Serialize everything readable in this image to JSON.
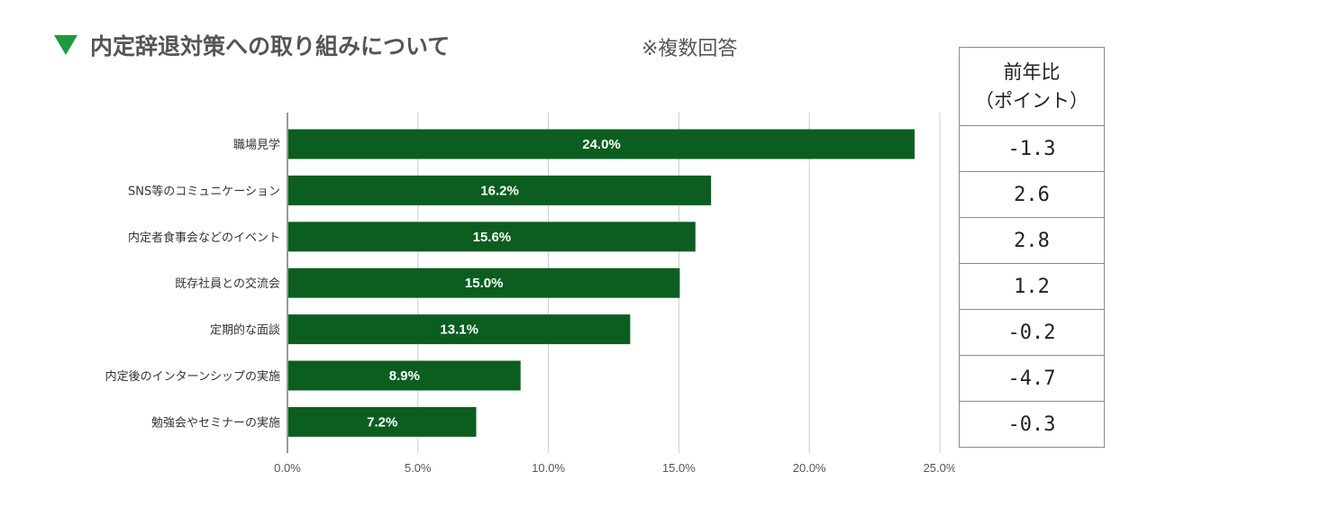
{
  "title": "内定辞退対策への取り組みについて",
  "note": "※複数回答",
  "table": {
    "header_line1": "前年比",
    "header_line2": "（ポイント）",
    "values": [
      "-1.3",
      "2.6",
      "2.8",
      "1.2",
      "-0.2",
      "-4.7",
      "-0.3"
    ]
  },
  "colors": {
    "bar": "#0b5e20",
    "marker": "#1e9a3c",
    "grid": "#cccccc",
    "axis": "#333333"
  },
  "chart_data": {
    "type": "bar",
    "orientation": "horizontal",
    "categories": [
      "職場見学",
      "SNS等のコミュニケーション",
      "内定者食事会などのイベント",
      "既存社員との交流会",
      "定期的な面談",
      "内定後のインターンシップの実施",
      "勉強会やセミナーの実施"
    ],
    "values": [
      24.0,
      16.2,
      15.6,
      15.0,
      13.1,
      8.9,
      7.2
    ],
    "value_labels": [
      "24.0%",
      "16.2%",
      "15.6%",
      "15.0%",
      "13.1%",
      "8.9%",
      "7.2%"
    ],
    "xlim": [
      0,
      25
    ],
    "xticks": [
      0,
      5,
      10,
      15,
      20,
      25
    ],
    "xtick_labels": [
      "0.0%",
      "5.0%",
      "10.0%",
      "15.0%",
      "20.0%",
      "25.0%"
    ],
    "grid": true,
    "legend": "none"
  }
}
